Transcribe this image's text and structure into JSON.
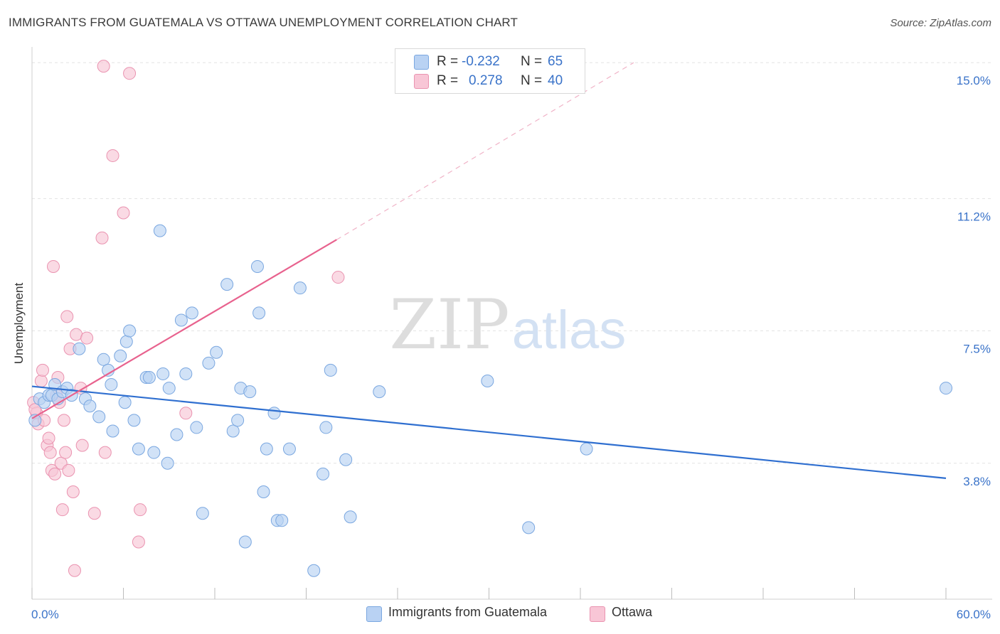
{
  "title": "IMMIGRANTS FROM GUATEMALA VS OTTAWA UNEMPLOYMENT CORRELATION CHART",
  "source": "Source: ZipAtlas.com",
  "watermark": {
    "zip": "ZIP",
    "atlas": "atlas"
  },
  "colors": {
    "blue_fill": "#b9d2f3",
    "blue_stroke": "#7aa7e0",
    "blue_line": "#2f6fd0",
    "pink_fill": "#f8c6d6",
    "pink_stroke": "#ea93b0",
    "pink_line": "#e8628e",
    "axis_text": "#3a73c9",
    "grid": "#e3e3e3"
  },
  "legend": {
    "rows": [
      {
        "r_label": "R =",
        "r_value": "-0.232",
        "n_label": "N =",
        "n_value": "65"
      },
      {
        "r_label": "R =",
        "r_value": "0.278",
        "n_label": "N =",
        "n_value": "40"
      }
    ]
  },
  "bottom_legend": [
    {
      "label": "Immigrants from Guatemala"
    },
    {
      "label": "Ottawa"
    }
  ],
  "chart_data": {
    "type": "scatter",
    "xlabel": "",
    "ylabel": "Unemployment",
    "xlim": [
      0,
      60
    ],
    "ylim": [
      0,
      15.3
    ],
    "x_tick_labels": [
      "0.0%",
      "60.0%"
    ],
    "y_tick_labels": [
      {
        "value": 15.0,
        "label": "15.0%"
      },
      {
        "value": 11.2,
        "label": "11.2%"
      },
      {
        "value": 7.5,
        "label": "7.5%"
      },
      {
        "value": 3.8,
        "label": "3.8%"
      }
    ],
    "grid": true,
    "series": [
      {
        "name": "Immigrants from Guatemala",
        "points": [
          [
            0.2,
            5.0
          ],
          [
            0.5,
            5.6
          ],
          [
            0.8,
            5.5
          ],
          [
            1.1,
            5.7
          ],
          [
            1.3,
            5.7
          ],
          [
            1.5,
            6.0
          ],
          [
            1.7,
            5.6
          ],
          [
            2.0,
            5.8
          ],
          [
            2.3,
            5.9
          ],
          [
            2.6,
            5.7
          ],
          [
            3.1,
            7.0
          ],
          [
            3.5,
            5.6
          ],
          [
            3.8,
            5.4
          ],
          [
            4.4,
            5.1
          ],
          [
            4.7,
            6.7
          ],
          [
            5.0,
            6.4
          ],
          [
            5.2,
            6.0
          ],
          [
            5.3,
            4.7
          ],
          [
            5.8,
            6.8
          ],
          [
            6.1,
            5.5
          ],
          [
            6.2,
            7.2
          ],
          [
            6.4,
            7.5
          ],
          [
            6.7,
            5.0
          ],
          [
            7.0,
            4.2
          ],
          [
            7.5,
            6.2
          ],
          [
            7.7,
            6.2
          ],
          [
            8.0,
            4.1
          ],
          [
            8.4,
            10.3
          ],
          [
            8.6,
            6.3
          ],
          [
            8.9,
            3.8
          ],
          [
            9.0,
            5.9
          ],
          [
            9.5,
            4.6
          ],
          [
            9.8,
            7.8
          ],
          [
            10.1,
            6.3
          ],
          [
            10.5,
            8.0
          ],
          [
            10.8,
            4.8
          ],
          [
            11.2,
            2.4
          ],
          [
            11.6,
            6.6
          ],
          [
            12.1,
            6.9
          ],
          [
            12.8,
            8.8
          ],
          [
            13.2,
            4.7
          ],
          [
            13.5,
            5.0
          ],
          [
            13.7,
            5.9
          ],
          [
            14.0,
            1.6
          ],
          [
            14.3,
            5.8
          ],
          [
            14.8,
            9.3
          ],
          [
            14.9,
            8.0
          ],
          [
            15.2,
            3.0
          ],
          [
            15.4,
            4.2
          ],
          [
            15.9,
            5.2
          ],
          [
            16.1,
            2.2
          ],
          [
            16.4,
            2.2
          ],
          [
            16.9,
            4.2
          ],
          [
            17.6,
            8.7
          ],
          [
            18.5,
            0.8
          ],
          [
            19.1,
            3.5
          ],
          [
            19.3,
            4.8
          ],
          [
            19.6,
            6.4
          ],
          [
            20.6,
            3.9
          ],
          [
            20.9,
            2.3
          ],
          [
            22.8,
            5.8
          ],
          [
            29.9,
            6.1
          ],
          [
            32.6,
            2.0
          ],
          [
            36.4,
            4.2
          ],
          [
            60.0,
            5.9
          ]
        ]
      },
      {
        "name": "Ottawa",
        "points": [
          [
            0.1,
            5.5
          ],
          [
            0.3,
            5.2
          ],
          [
            0.4,
            4.9
          ],
          [
            0.6,
            6.1
          ],
          [
            0.7,
            6.4
          ],
          [
            0.8,
            5.0
          ],
          [
            1.0,
            4.3
          ],
          [
            1.1,
            4.5
          ],
          [
            1.2,
            4.1
          ],
          [
            1.3,
            3.6
          ],
          [
            1.4,
            9.3
          ],
          [
            1.5,
            3.5
          ],
          [
            1.6,
            5.7
          ],
          [
            1.7,
            6.2
          ],
          [
            1.8,
            5.5
          ],
          [
            1.9,
            3.8
          ],
          [
            2.0,
            2.5
          ],
          [
            2.1,
            5.0
          ],
          [
            2.2,
            4.1
          ],
          [
            2.3,
            7.9
          ],
          [
            2.4,
            3.6
          ],
          [
            2.5,
            7.0
          ],
          [
            2.7,
            3.0
          ],
          [
            2.8,
            0.8
          ],
          [
            2.9,
            7.4
          ],
          [
            3.2,
            5.9
          ],
          [
            3.3,
            4.3
          ],
          [
            3.6,
            7.3
          ],
          [
            4.1,
            2.4
          ],
          [
            4.6,
            10.1
          ],
          [
            4.7,
            14.9
          ],
          [
            4.8,
            4.1
          ],
          [
            5.3,
            12.4
          ],
          [
            6.0,
            10.8
          ],
          [
            6.4,
            14.7
          ],
          [
            7.0,
            1.6
          ],
          [
            7.1,
            2.5
          ],
          [
            10.1,
            5.2
          ],
          [
            20.1,
            9.0
          ],
          [
            0.2,
            5.3
          ]
        ]
      }
    ],
    "trend_lines": [
      {
        "series": "Immigrants from Guatemala",
        "x": [
          0,
          60
        ],
        "y": [
          5.95,
          3.38
        ]
      },
      {
        "series": "Ottawa",
        "x": [
          0,
          20.0
        ],
        "y": [
          5.05,
          10.05
        ],
        "dashed_extension_to": [
          39.5,
          15.0
        ]
      }
    ]
  }
}
